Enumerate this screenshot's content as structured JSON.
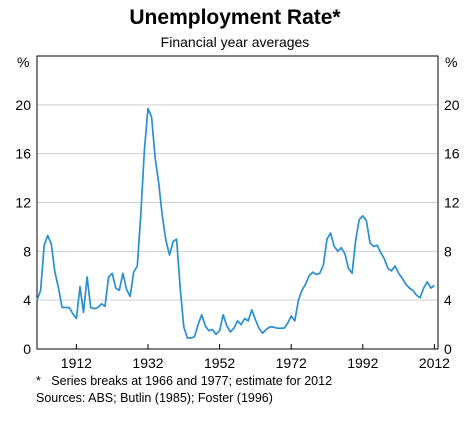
{
  "chart_data": {
    "type": "line",
    "title": "Unemployment Rate*",
    "subtitle": "Financial year averages",
    "ylabel_left": "%",
    "ylabel_right": "%",
    "ylim": [
      0,
      24
    ],
    "xlim": [
      1901,
      2013
    ],
    "y_ticks": [
      "0",
      "4",
      "8",
      "12",
      "16",
      "20"
    ],
    "y_tick_values": [
      0,
      4,
      8,
      12,
      16,
      20
    ],
    "x_ticks": [
      "1912",
      "1932",
      "1952",
      "1972",
      "1992",
      "2012"
    ],
    "x_tick_values": [
      1912,
      1932,
      1952,
      1972,
      1992,
      2012
    ],
    "grid": true,
    "line_color": "#2a8fcf",
    "series": [
      {
        "x": [
          1901,
          1902,
          1903,
          1904,
          1905,
          1906,
          1907,
          1908,
          1909,
          1910,
          1911,
          1912,
          1913,
          1914,
          1915,
          1916,
          1917,
          1918,
          1919,
          1920,
          1921,
          1922,
          1923,
          1924,
          1925,
          1926,
          1927,
          1928,
          1929,
          1930,
          1931,
          1932,
          1933,
          1934,
          1935,
          1936,
          1937,
          1938,
          1939,
          1940,
          1941,
          1942,
          1943,
          1944,
          1945,
          1946,
          1947,
          1948,
          1949,
          1950,
          1951,
          1952,
          1953,
          1954,
          1955,
          1956,
          1957,
          1958,
          1959,
          1960,
          1961,
          1962,
          1963,
          1964,
          1965,
          1966,
          1967,
          1968,
          1969,
          1970,
          1971,
          1972,
          1973,
          1974,
          1975,
          1976,
          1977,
          1978,
          1979,
          1980,
          1981,
          1982,
          1983,
          1984,
          1985,
          1986,
          1987,
          1988,
          1989,
          1990,
          1991,
          1992,
          1993,
          1994,
          1995,
          1996,
          1997,
          1998,
          1999,
          2000,
          2001,
          2002,
          2003,
          2004,
          2005,
          2006,
          2007,
          2008,
          2009,
          2010,
          2011,
          2012
        ],
        "values": [
          4.0,
          4.8,
          8.5,
          9.3,
          8.6,
          6.3,
          5.0,
          3.4,
          3.4,
          3.4,
          2.9,
          2.5,
          5.1,
          3.0,
          5.9,
          3.4,
          3.3,
          3.4,
          3.7,
          3.5,
          5.9,
          6.2,
          5.0,
          4.8,
          6.2,
          4.9,
          4.3,
          6.3,
          6.8,
          11.0,
          16.3,
          19.7,
          19.0,
          15.6,
          13.6,
          10.9,
          8.9,
          7.7,
          8.8,
          9.0,
          5.0,
          1.8,
          0.9,
          0.9,
          1.0,
          2.0,
          2.8,
          1.9,
          1.5,
          1.6,
          1.2,
          1.5,
          2.8,
          1.9,
          1.4,
          1.7,
          2.3,
          2.0,
          2.5,
          2.3,
          3.2,
          2.4,
          1.7,
          1.3,
          1.6,
          1.8,
          1.8,
          1.7,
          1.7,
          1.7,
          2.1,
          2.7,
          2.3,
          4.0,
          4.8,
          5.3,
          6.0,
          6.3,
          6.1,
          6.2,
          6.9,
          9.0,
          9.5,
          8.4,
          8.0,
          8.3,
          7.8,
          6.6,
          6.2,
          8.9,
          10.6,
          10.9,
          10.5,
          8.7,
          8.4,
          8.5,
          7.9,
          7.4,
          6.6,
          6.4,
          6.8,
          6.2,
          5.8,
          5.3,
          5.0,
          4.8,
          4.4,
          4.2,
          5.0,
          5.5,
          5.0,
          5.2
        ]
      }
    ]
  },
  "notes": {
    "star": "*",
    "line1": "Series breaks at 1966 and 1977; estimate for 2012",
    "line2": "Sources: ABS; Butlin (1985); Foster (1996)"
  }
}
